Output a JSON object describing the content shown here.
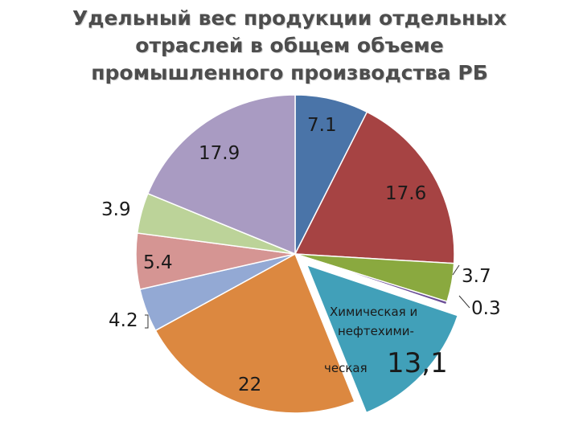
{
  "title": "Удельный вес продукции отдельных\nотраслей в общем объеме\nпромышленного производства РБ",
  "chart_data": {
    "type": "pie",
    "title": "Удельный вес продукции отдельных отраслей в общем объеме промышленного производства РБ",
    "slices": [
      {
        "label": "7.1",
        "value": 7.1,
        "color": "#4a74a8"
      },
      {
        "label": "17.6",
        "value": 17.6,
        "color": "#a64343"
      },
      {
        "label": "3.7",
        "value": 3.7,
        "color": "#8aa93f"
      },
      {
        "label": "0.3",
        "value": 0.3,
        "color": "#6b4f96"
      },
      {
        "label": "Химическая и нефтехими- ческая 13,1",
        "value": 13.1,
        "color": "#41a0b9",
        "exploded": true
      },
      {
        "label": "22",
        "value": 22,
        "color": "#dc8840"
      },
      {
        "label": "4.2",
        "value": 4.2,
        "color": "#93a9d4"
      },
      {
        "label": "5.4",
        "value": 5.4,
        "color": "#d59593"
      },
      {
        "label": "3.9",
        "value": 3.9,
        "color": "#bcd399"
      },
      {
        "label": "17.9",
        "value": 17.9,
        "color": "#a99bc2"
      }
    ]
  },
  "labels": {
    "s0": "7.1",
    "s1": "17.6",
    "s2": "3.7",
    "s3": "0.3",
    "s4_line1": "Химическая и",
    "s4_line2": "нефтехими-",
    "s4_line3": "ческая",
    "s4_value": "13,1",
    "s5": "22",
    "s6": "4.2",
    "s7": "5.4",
    "s8": "3.9",
    "s9": "17.9"
  }
}
